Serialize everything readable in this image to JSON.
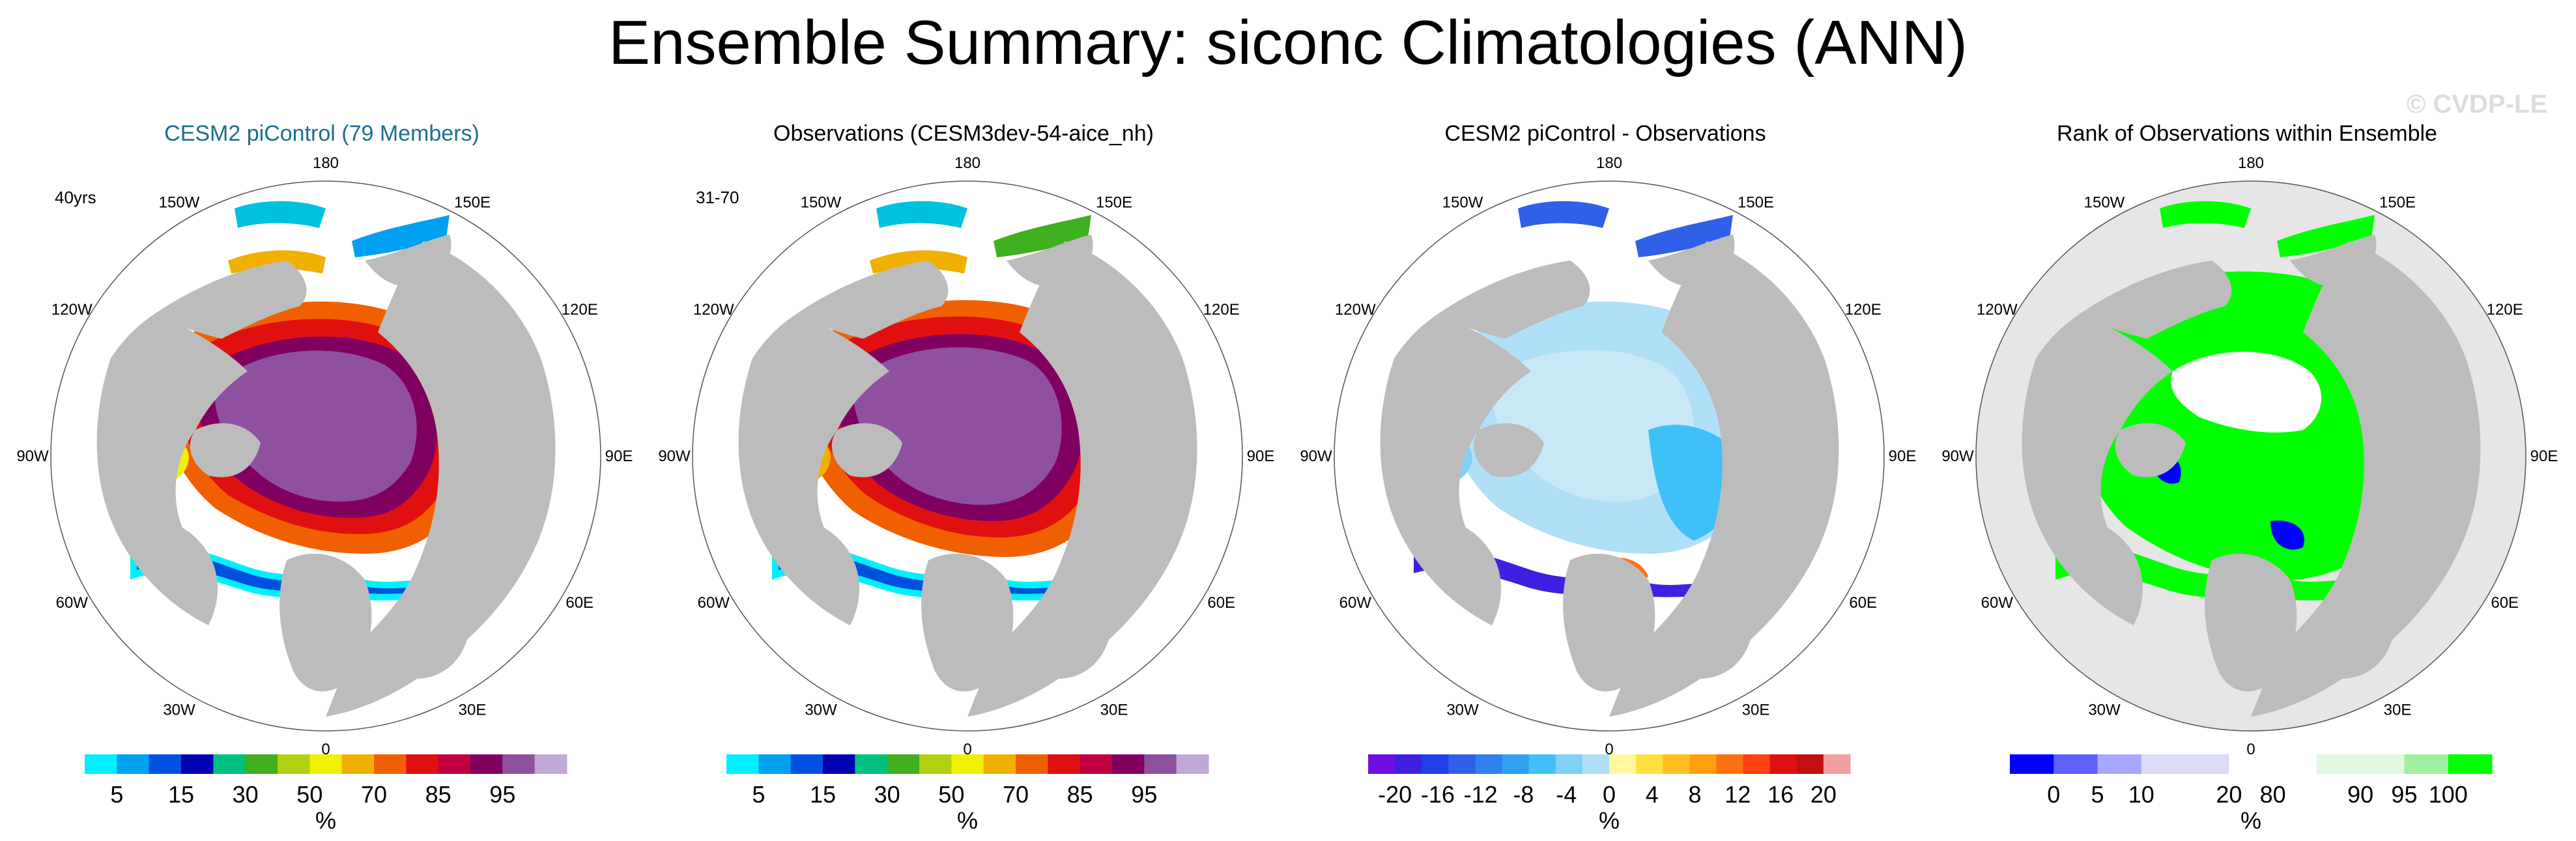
{
  "figure": {
    "title": "Ensemble Summary: siconc Climatologies (ANN)",
    "watermark": "© CVDP-LE"
  },
  "panels": [
    {
      "title": "CESM2 piControl (79 Members)",
      "title_color": "#1b6f8e",
      "corner_label": "40yrs",
      "ocean_color": "#ffffff",
      "colorbar": {
        "colors": [
          "#00f0ff",
          "#00a0f0",
          "#0050e0",
          "#0000b0",
          "#00c080",
          "#40b020",
          "#b0d010",
          "#f0f000",
          "#f0b000",
          "#f06000",
          "#e01010",
          "#c00040",
          "#800060",
          "#9050a0",
          "#c0a8d8"
        ],
        "labels": [
          "5",
          "15",
          "30",
          "50",
          "70",
          "85",
          "95"
        ],
        "unit": "%"
      }
    },
    {
      "title": "Observations (CESM3dev-54-aice_nh)",
      "title_color": "#000000",
      "corner_label": "31-70",
      "ocean_color": "#ffffff",
      "colorbar": {
        "colors": [
          "#00f0ff",
          "#00a0f0",
          "#0050e0",
          "#0000b0",
          "#00c080",
          "#40b020",
          "#b0d010",
          "#f0f000",
          "#f0b000",
          "#f06000",
          "#e01010",
          "#c00040",
          "#800060",
          "#9050a0",
          "#c0a8d8"
        ],
        "labels": [
          "5",
          "15",
          "30",
          "50",
          "70",
          "85",
          "95"
        ],
        "unit": "%"
      }
    },
    {
      "title": "CESM2 piControl - Observations",
      "title_color": "#000000",
      "corner_label": "",
      "ocean_color": "#ffffff",
      "colorbar": {
        "colors": [
          "#7010e0",
          "#4020e0",
          "#2040e8",
          "#3060e8",
          "#3080f0",
          "#30a0f0",
          "#40c0f8",
          "#80d0f8",
          "#b0e0f8",
          "#fff8a0",
          "#ffe040",
          "#ffc020",
          "#ffa010",
          "#ff7010",
          "#ff4010",
          "#e01010",
          "#c01010",
          "#f0a0a0"
        ],
        "labels": [
          "-20",
          "-16",
          "-12",
          "-8",
          "-4",
          "0",
          "4",
          "8",
          "12",
          "16",
          "20"
        ],
        "unit": "%"
      }
    },
    {
      "title": "Rank of Observations within Ensemble",
      "title_color": "#000000",
      "corner_label": "",
      "ocean_color": "#e6e6e6",
      "colorbar": {
        "colors": [
          "#0000ff",
          "#6060ff",
          "#a8a8ff",
          "#dcdcf8",
          "#dcdcf8",
          "#ffffff",
          "#ffffff",
          "#e0f8e0",
          "#e0f8e0",
          "#a0f0a0",
          "#00ff00"
        ],
        "labels": [
          "0",
          "5",
          "10",
          "20",
          "80",
          "90",
          "95",
          "100"
        ],
        "unit": "%"
      }
    }
  ],
  "longitude_labels": [
    "180",
    "150E",
    "120E",
    "90E",
    "60E",
    "30E",
    "0",
    "30W",
    "60W",
    "90W",
    "120W",
    "150W"
  ]
}
